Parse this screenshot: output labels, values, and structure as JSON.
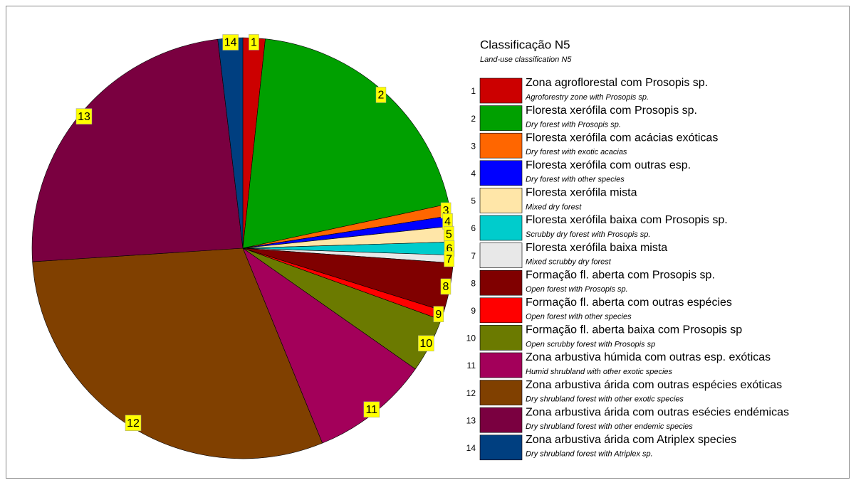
{
  "chart_data": {
    "type": "pie",
    "title": "Classificação N5",
    "subtitle": "Land-use classification N5",
    "ids": [
      "1",
      "2",
      "3",
      "4",
      "5",
      "6",
      "7",
      "8",
      "9",
      "10",
      "11",
      "12",
      "13",
      "14"
    ],
    "categories": [
      "Zona agroflorestal com Prosopis sp.",
      "Floresta xerófila com Prosopis sp.",
      "Floresta xerófila com acácias exóticas",
      "Floresta xerófila com outras esp.",
      "Floresta xerófila mista",
      "Floresta xerófila baixa com Prosopis sp.",
      "Floresta xerófila baixa mista",
      "Formação fl. aberta com Prosopis sp.",
      "Formação fl. aberta com outras espécies",
      "Formação fl. aberta baixa com Prosopis sp",
      "Zona arbustiva húmida com outras esp. exóticas",
      "Zona arbustiva árida com outras espécies exóticas",
      "Zona arbustiva árida com outras esécies endémicas",
      "Zona arbustiva árida com Atriplex species"
    ],
    "categories_en": [
      "Agroforestry zone with Prosopis sp.",
      "Dry forest with Prosopis sp.",
      "Dry forest with exotic acacias",
      "Dry forest with other species",
      "Mixed dry forest",
      "Scrubby dry forest with Prosopis sp.",
      "Mixed scrubby dry forest",
      "Open forest with Prosopis sp.",
      "Open forest with other species",
      "Open scrubby forest with Prosopis sp",
      "Humid shrubland with other exotic species",
      "Dry shrubland forest with other exotic species",
      "Dry shrubland forest with other endemic species",
      "Dry shrubland forest with Atriplex sp."
    ],
    "values": [
      1.7,
      19.9,
      0.9,
      0.8,
      1.2,
      1.0,
      0.6,
      3.7,
      0.7,
      4.2,
      9.1,
      30.1,
      24.1,
      1.9
    ],
    "colors": [
      "#cc0000",
      "#00a000",
      "#ff6600",
      "#0000ff",
      "#ffe6a8",
      "#00cccc",
      "#e8e8e8",
      "#800000",
      "#ff0000",
      "#6b7a00",
      "#a3005a",
      "#804000",
      "#7a0040",
      "#003f80"
    ]
  }
}
